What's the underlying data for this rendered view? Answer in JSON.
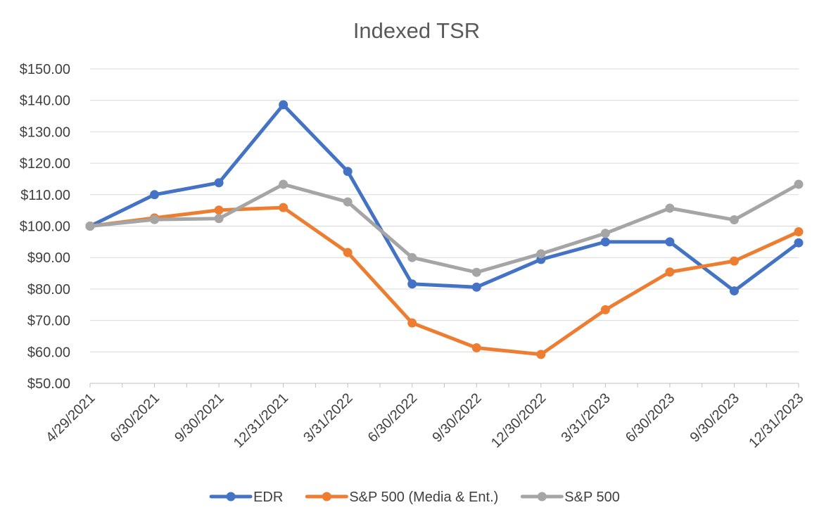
{
  "chart_data": {
    "type": "line",
    "title": "Indexed TSR",
    "xlabel": "",
    "ylabel": "",
    "ylim": [
      50,
      150
    ],
    "y_ticks": [
      "$50.00",
      "$60.00",
      "$70.00",
      "$80.00",
      "$90.00",
      "$100.00",
      "$110.00",
      "$120.00",
      "$130.00",
      "$140.00",
      "$150.00"
    ],
    "categories": [
      "4/29/2021",
      "6/30/2021",
      "9/30/2021",
      "12/31/2021",
      "3/31/2022",
      "6/30/2022",
      "9/30/2022",
      "12/30/2022",
      "3/31/2023",
      "6/30/2023",
      "9/30/2023",
      "12/31/2023"
    ],
    "grid": true,
    "legend_position": "bottom",
    "series": [
      {
        "name": "EDR",
        "color": "#4472c4",
        "values": [
          100.0,
          110.0,
          113.8,
          138.6,
          117.4,
          81.6,
          80.6,
          89.4,
          95.0,
          95.0,
          79.4,
          94.7
        ]
      },
      {
        "name": "S&P 500 (Media & Ent.)",
        "color": "#ed7d31",
        "values": [
          100.0,
          102.6,
          105.1,
          105.9,
          91.6,
          69.2,
          61.3,
          59.2,
          73.4,
          85.4,
          88.9,
          98.2
        ]
      },
      {
        "name": "S&P 500",
        "color": "#a5a5a5",
        "values": [
          100.0,
          102.1,
          102.4,
          113.3,
          107.7,
          90.0,
          85.3,
          91.2,
          97.7,
          105.7,
          102.0,
          113.3
        ]
      }
    ]
  }
}
